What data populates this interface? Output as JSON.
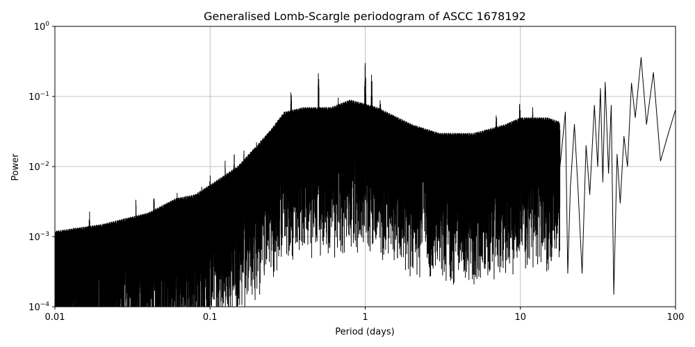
{
  "chart_data": {
    "type": "line",
    "title": "Generalised Lomb-Scargle periodogram of ASCC 1678192",
    "xlabel": "Period (days)",
    "ylabel": "Power",
    "xscale": "log",
    "yscale": "log",
    "xlim": [
      0.01,
      100
    ],
    "ylim": [
      0.0001,
      1
    ],
    "grid": true,
    "x_ticks": [
      {
        "value": 0.01,
        "label": "0.01"
      },
      {
        "value": 0.1,
        "label": "0.1"
      },
      {
        "value": 1,
        "label": "1"
      },
      {
        "value": 10,
        "label": "10"
      },
      {
        "value": 100,
        "label": "100"
      }
    ],
    "y_ticks": [
      {
        "value": 0.0001,
        "base": "10",
        "exp": "−4"
      },
      {
        "value": 0.001,
        "base": "10",
        "exp": "−3"
      },
      {
        "value": 0.01,
        "base": "10",
        "exp": "−2"
      },
      {
        "value": 0.1,
        "base": "10",
        "exp": "−1"
      },
      {
        "value": 1,
        "base": "10",
        "exp": "0"
      }
    ],
    "series_color": "#000000",
    "envelope": [
      [
        0.01,
        0.0012
      ],
      [
        0.02,
        0.0015
      ],
      [
        0.04,
        0.0022
      ],
      [
        0.06,
        0.0035
      ],
      [
        0.08,
        0.004
      ],
      [
        0.1,
        0.0055
      ],
      [
        0.15,
        0.01
      ],
      [
        0.2,
        0.02
      ],
      [
        0.25,
        0.035
      ],
      [
        0.3,
        0.06
      ],
      [
        0.4,
        0.07
      ],
      [
        0.6,
        0.07
      ],
      [
        0.8,
        0.09
      ],
      [
        1.2,
        0.07
      ],
      [
        2,
        0.04
      ],
      [
        3,
        0.03
      ],
      [
        5,
        0.03
      ],
      [
        8,
        0.04
      ],
      [
        10,
        0.05
      ],
      [
        15,
        0.05
      ],
      [
        20,
        0.04
      ]
    ],
    "peaks": [
      {
        "x": 0.0133,
        "y": 0.0015
      },
      {
        "x": 0.0167,
        "y": 0.0024
      },
      {
        "x": 0.0333,
        "y": 0.0035
      },
      {
        "x": 0.0435,
        "y": 0.0042
      },
      {
        "x": 0.0615,
        "y": 0.0045
      },
      {
        "x": 0.0885,
        "y": 0.0055
      },
      {
        "x": 0.1,
        "y": 0.008
      },
      {
        "x": 0.125,
        "y": 0.012
      },
      {
        "x": 0.143,
        "y": 0.016
      },
      {
        "x": 0.165,
        "y": 0.018
      },
      {
        "x": 0.2,
        "y": 0.025
      },
      {
        "x": 0.25,
        "y": 0.04
      },
      {
        "x": 0.333,
        "y": 0.13
      },
      {
        "x": 0.5,
        "y": 0.23
      },
      {
        "x": 0.67,
        "y": 0.1
      },
      {
        "x": 1.0,
        "y": 0.32
      },
      {
        "x": 1.1,
        "y": 0.22
      },
      {
        "x": 1.25,
        "y": 0.1
      },
      {
        "x": 2.0,
        "y": 0.04
      },
      {
        "x": 7.0,
        "y": 0.06
      },
      {
        "x": 9.9,
        "y": 0.09
      },
      {
        "x": 12.0,
        "y": 0.07
      },
      {
        "x": 15.0,
        "y": 0.05
      }
    ],
    "tail_curve": [
      [
        18.0,
        0.01
      ],
      [
        19.5,
        0.06
      ],
      [
        20.2,
        0.0003
      ],
      [
        21.0,
        0.005
      ],
      [
        22.3,
        0.04
      ],
      [
        23.5,
        0.005
      ],
      [
        25.0,
        0.0003
      ],
      [
        26.5,
        0.02
      ],
      [
        28.0,
        0.004
      ],
      [
        30.0,
        0.075
      ],
      [
        31.5,
        0.01
      ],
      [
        32.8,
        0.13
      ],
      [
        34.0,
        0.006
      ],
      [
        35.2,
        0.16
      ],
      [
        37.0,
        0.008
      ],
      [
        38.5,
        0.075
      ],
      [
        40.0,
        0.00015
      ],
      [
        42.0,
        0.015
      ],
      [
        44.0,
        0.003
      ],
      [
        46.5,
        0.027
      ],
      [
        49.0,
        0.01
      ],
      [
        52.0,
        0.155
      ],
      [
        55.0,
        0.05
      ],
      [
        60.0,
        0.36
      ],
      [
        65.0,
        0.04
      ],
      [
        72.0,
        0.22
      ],
      [
        80.0,
        0.012
      ],
      [
        90.0,
        0.03
      ],
      [
        100.0,
        0.065
      ]
    ]
  }
}
